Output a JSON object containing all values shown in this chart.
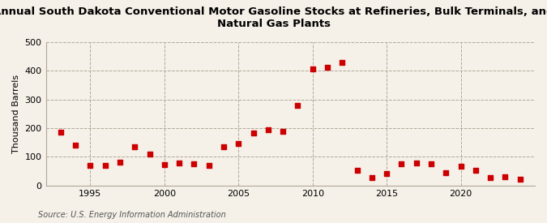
{
  "title": "Annual South Dakota Conventional Motor Gasoline Stocks at Refineries, Bulk Terminals, and\nNatural Gas Plants",
  "ylabel": "Thousand Barrels",
  "source": "Source: U.S. Energy Information Administration",
  "background_color": "#f5f0e8",
  "plot_bg_color": "#f5f0e8",
  "marker_color": "#cc0000",
  "years": [
    1993,
    1994,
    1995,
    1996,
    1997,
    1998,
    1999,
    2000,
    2001,
    2002,
    2003,
    2004,
    2005,
    2006,
    2007,
    2008,
    2009,
    2010,
    2011,
    2012,
    2013,
    2014,
    2015,
    2016,
    2017,
    2018,
    2019,
    2020,
    2021,
    2022,
    2023,
    2024
  ],
  "values": [
    185,
    140,
    70,
    70,
    82,
    136,
    108,
    73,
    78,
    74,
    70,
    136,
    147,
    182,
    193,
    190,
    280,
    407,
    413,
    428,
    52,
    27,
    42,
    74,
    78,
    74,
    43,
    66,
    52,
    26,
    30,
    21
  ],
  "ylim": [
    0,
    500
  ],
  "yticks": [
    0,
    100,
    200,
    300,
    400,
    500
  ],
  "xlim": [
    1992,
    2025
  ],
  "xticks": [
    1995,
    2000,
    2005,
    2010,
    2015,
    2020
  ]
}
